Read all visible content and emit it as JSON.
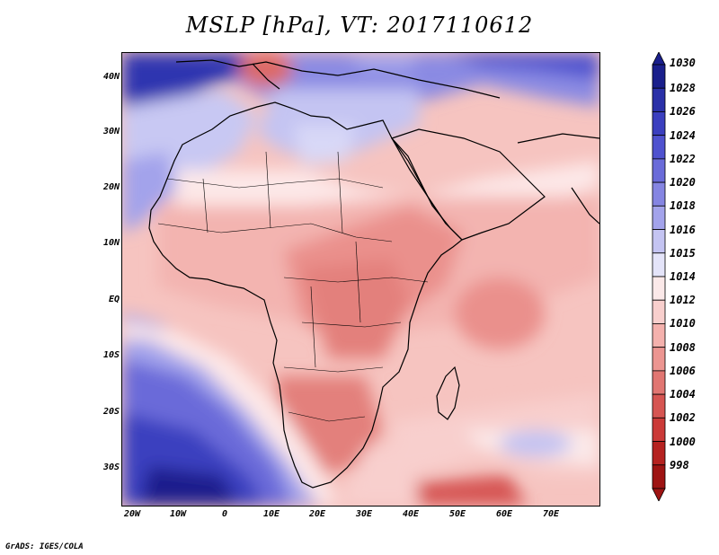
{
  "title": "MSLP [hPa], VT: 2017110612",
  "footer": "GrADS: IGES/COLA",
  "y_axis_labels": [
    "40N",
    "30N",
    "20N",
    "10N",
    "EQ",
    "10S",
    "20S",
    "30S"
  ],
  "x_axis_labels": [
    "20W",
    "10W",
    "0",
    "10E",
    "20E",
    "30E",
    "40E",
    "50E",
    "60E",
    "70E"
  ],
  "colorbar": {
    "levels": [
      "1030",
      "1028",
      "1026",
      "1024",
      "1022",
      "1020",
      "1018",
      "1016",
      "1015",
      "1014",
      "1012",
      "1010",
      "1008",
      "1006",
      "1004",
      "1002",
      "1000",
      "998"
    ],
    "colors": [
      "#1a1f8c",
      "#2a30a8",
      "#3b3fbf",
      "#4f52cf",
      "#6a6bd9",
      "#8585e2",
      "#a3a3eb",
      "#c4c4f2",
      "#e4e4f9",
      "#fbe9e9",
      "#f8cfcd",
      "#f4b1ad",
      "#ec9591",
      "#e17672",
      "#d65552",
      "#cb3a38",
      "#b52220",
      "#9e1413"
    ]
  },
  "colors": {
    "frame": "#000000",
    "coast": "#000000",
    "background": "#ffffff"
  }
}
